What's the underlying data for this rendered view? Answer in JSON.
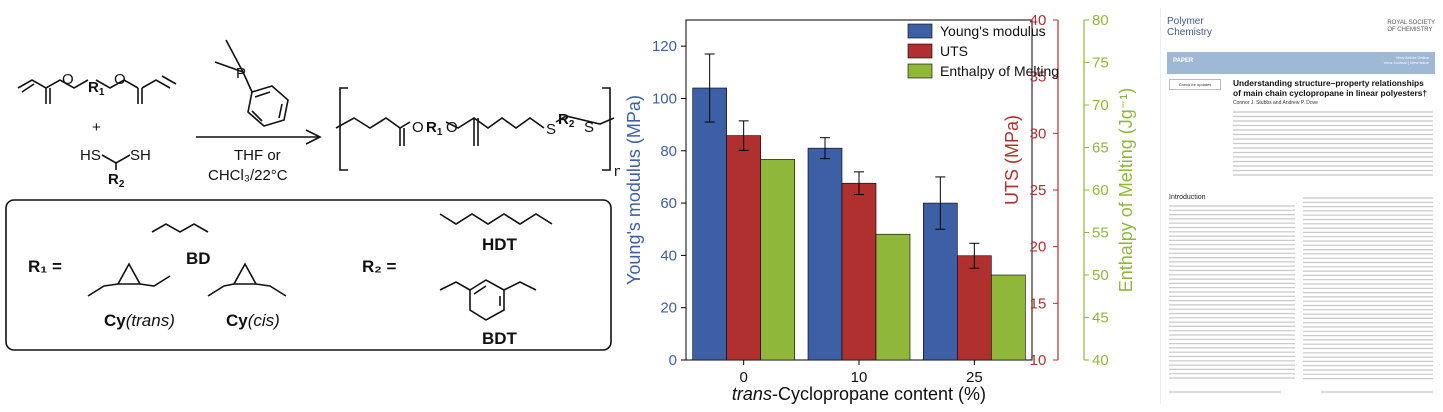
{
  "scheme": {
    "reagent": "P",
    "conditions_line1": "THF or",
    "conditions_line2": "CHCl₃/22°C",
    "plus": "+",
    "thiol_left": "HS",
    "thiol_right": "SH",
    "r2_label": "R",
    "r2_sub": "2",
    "r1_label": "R",
    "r1_sub": "1",
    "n_label": "n",
    "product_r1": "R",
    "product_r2": "R",
    "sulfur": "S",
    "oxygen": "O"
  },
  "legend_box": {
    "r1_eq": "R₁  =",
    "r2_eq": "R₂  =",
    "bd": "BD",
    "cy_trans_a": "Cy",
    "cy_trans_b": "(trans)",
    "cy_cis_a": "Cy",
    "cy_cis_b": "(cis)",
    "hdt": "HDT",
    "bdt": "BDT"
  },
  "chart_data": {
    "type": "bar",
    "categories": [
      "0",
      "10",
      "25"
    ],
    "xlabel": "trans-Cyclopropane content (%)",
    "xlabel_italic_part": "trans",
    "xlabel_rest": "-Cyclopropane content (%)",
    "legend_position": "top-right",
    "axes": {
      "left": {
        "label": "Young's modulus (MPa)",
        "ylim": [
          0,
          130
        ],
        "ticks": [
          0,
          20,
          40,
          60,
          80,
          100,
          120
        ],
        "color": "#3c5fa6"
      },
      "right1": {
        "label": "UTS (MPa)",
        "ylim": [
          10,
          40
        ],
        "ticks": [
          10,
          15,
          20,
          25,
          30,
          35,
          40
        ],
        "color": "#b03030"
      },
      "right2": {
        "label": "Enthalpy of Melting (Jg⁻¹)",
        "ylim": [
          40,
          80
        ],
        "ticks": [
          40,
          45,
          50,
          55,
          60,
          65,
          70,
          75,
          80
        ],
        "color": "#8fb83a"
      }
    },
    "series": [
      {
        "name": "Young's modulus",
        "axis": "left",
        "color": "#3c5fa6",
        "values": [
          104,
          81,
          60
        ],
        "errors": [
          13,
          4,
          10
        ]
      },
      {
        "name": "UTS",
        "axis": "right1",
        "color": "#b03030",
        "values": [
          29.8,
          25.6,
          19.2
        ],
        "errors": [
          1.3,
          1.0,
          1.1
        ]
      },
      {
        "name": "Enthalpy of Melting",
        "axis": "right2",
        "color": "#8fb83a",
        "values": [
          63.6,
          54.8,
          50.0
        ],
        "errors": [
          0,
          0,
          0
        ]
      }
    ]
  },
  "article": {
    "journal_line1": "Polymer",
    "journal_line2": "Chemistry",
    "publisher_line1": "ROYAL SOCIETY",
    "publisher_line2": "OF CHEMISTRY",
    "section": "PAPER",
    "view_online": "View Article Online",
    "view_journal": "View Journal | View Issue",
    "check_updates": "Check for updates",
    "title": "Understanding structure–property relationships of main chain cyclopropane in linear polyesters†",
    "authors": "Connor J. Stubbs and Andrew P. Dove",
    "intro_heading": "Introduction"
  }
}
